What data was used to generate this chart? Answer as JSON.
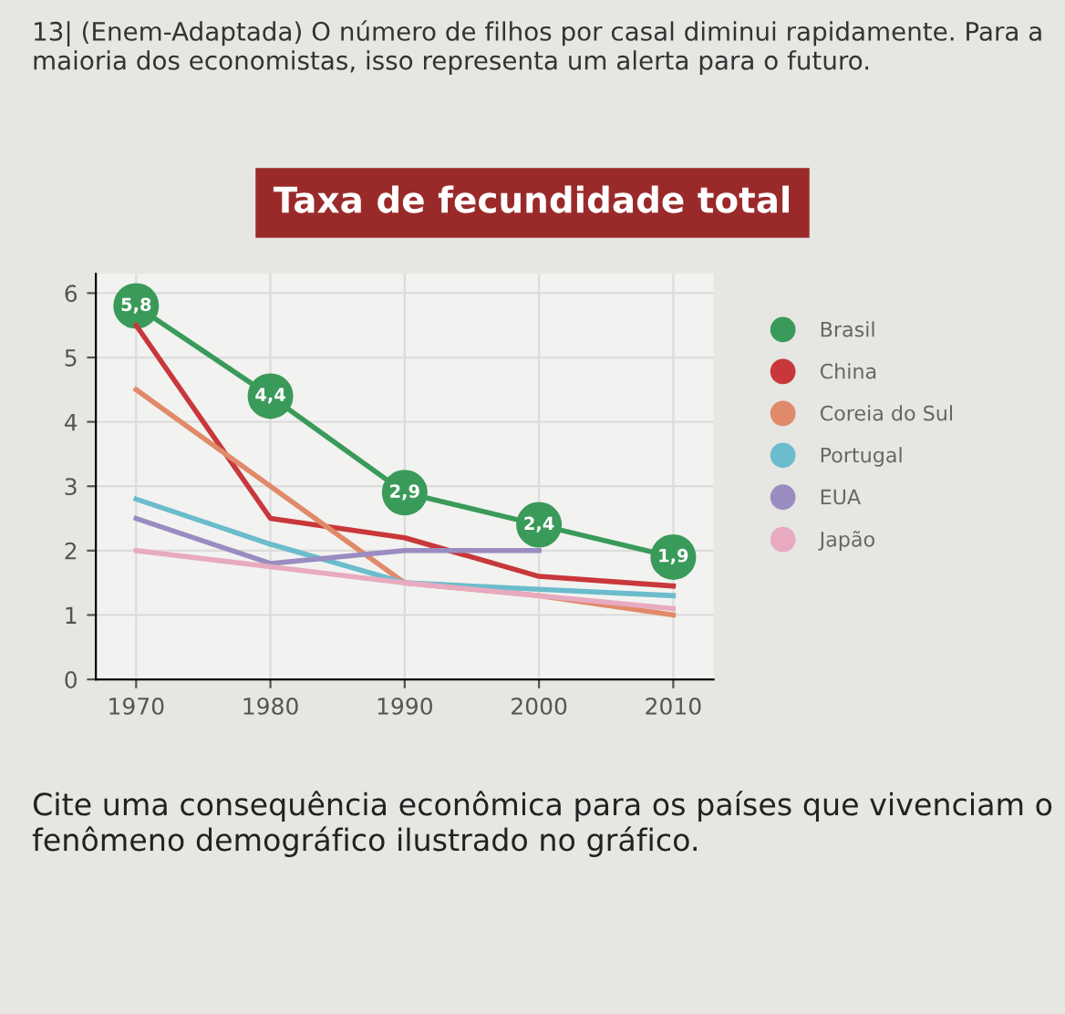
{
  "chart_data": {
    "type": "line",
    "title": "Taxa de fecundidade total",
    "annotations": [
      "13| (Enem-Adaptada) O número de filhos por casal diminui rapidamente. Para a maioria dos economistas, isso representa um alerta para o futuro.",
      "Cite uma consequência econômica para os países que vivenciam o fenômeno demográfico ilustrado no gráfico."
    ],
    "x": [
      1970,
      1980,
      1990,
      2000,
      2010
    ],
    "series": [
      {
        "name": "Brasil",
        "color": "#3a9a5a",
        "marker": "circle",
        "values": [
          5.8,
          4.4,
          2.9,
          2.4,
          1.9
        ],
        "value_labels": [
          "5,8",
          "4,4",
          "2,9",
          "2,4",
          "1,9"
        ]
      },
      {
        "name": "China",
        "color": "#c8383a",
        "values": [
          5.5,
          2.5,
          2.2,
          1.6,
          1.45
        ]
      },
      {
        "name": "Coreia do Sul",
        "color": "#e08a6a",
        "values": [
          4.5,
          3.0,
          1.5,
          1.3,
          1.0
        ]
      },
      {
        "name": "Portugal",
        "color": "#6bbccc",
        "values": [
          2.8,
          2.1,
          1.5,
          1.4,
          1.3
        ]
      },
      {
        "name": "EUA",
        "color": "#9a8cc0",
        "values": [
          2.5,
          1.8,
          2.0,
          2.0,
          null
        ]
      },
      {
        "name": "Japão",
        "color": "#e8aac0",
        "values": [
          2.0,
          1.75,
          1.5,
          1.3,
          1.1
        ]
      }
    ],
    "xlim": [
      1967,
      2013
    ],
    "ylim": [
      0,
      6.3
    ],
    "xticks": [
      1970,
      1980,
      1990,
      2000,
      2010
    ],
    "yticks": [
      0,
      1,
      2,
      3,
      4,
      5,
      6
    ],
    "grid": true,
    "legend": "right",
    "line_style": "solid"
  }
}
